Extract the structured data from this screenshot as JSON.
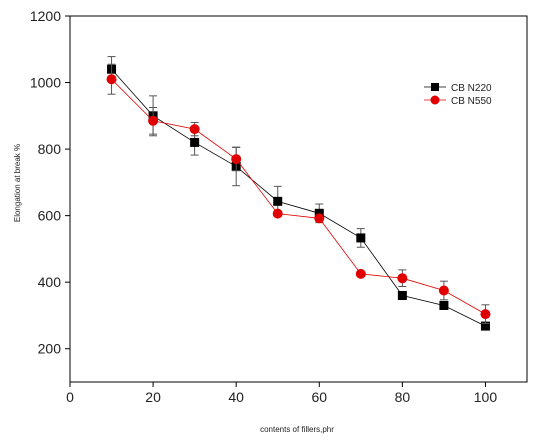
{
  "chart_data": {
    "type": "line",
    "title": "",
    "xlabel": "contents of fillers,phr",
    "ylabel": "Elongation at break %",
    "xlim": [
      0,
      110
    ],
    "ylim": [
      100,
      1200
    ],
    "xticks": [
      0,
      20,
      40,
      60,
      80,
      100
    ],
    "yticks": [
      200,
      400,
      600,
      800,
      1000,
      1200
    ],
    "grid": false,
    "legend_position": "top-right",
    "series": [
      {
        "name": "CB N220",
        "color": "#000000",
        "marker": "square",
        "x": [
          10,
          20,
          30,
          40,
          50,
          60,
          70,
          80,
          90,
          100
        ],
        "y": [
          1040,
          900,
          820,
          748,
          643,
          607,
          533,
          360,
          330,
          268
        ],
        "err": [
          38,
          60,
          38,
          58,
          45,
          28,
          28,
          0,
          0,
          0
        ]
      },
      {
        "name": "CB N550",
        "color": "#e00000",
        "marker": "circle",
        "x": [
          10,
          20,
          30,
          40,
          50,
          60,
          70,
          80,
          90,
          100
        ],
        "y": [
          1010,
          885,
          860,
          770,
          606,
          592,
          425,
          412,
          375,
          304
        ],
        "err": [
          45,
          40,
          20,
          35,
          0,
          0,
          0,
          25,
          28,
          28
        ]
      }
    ]
  }
}
